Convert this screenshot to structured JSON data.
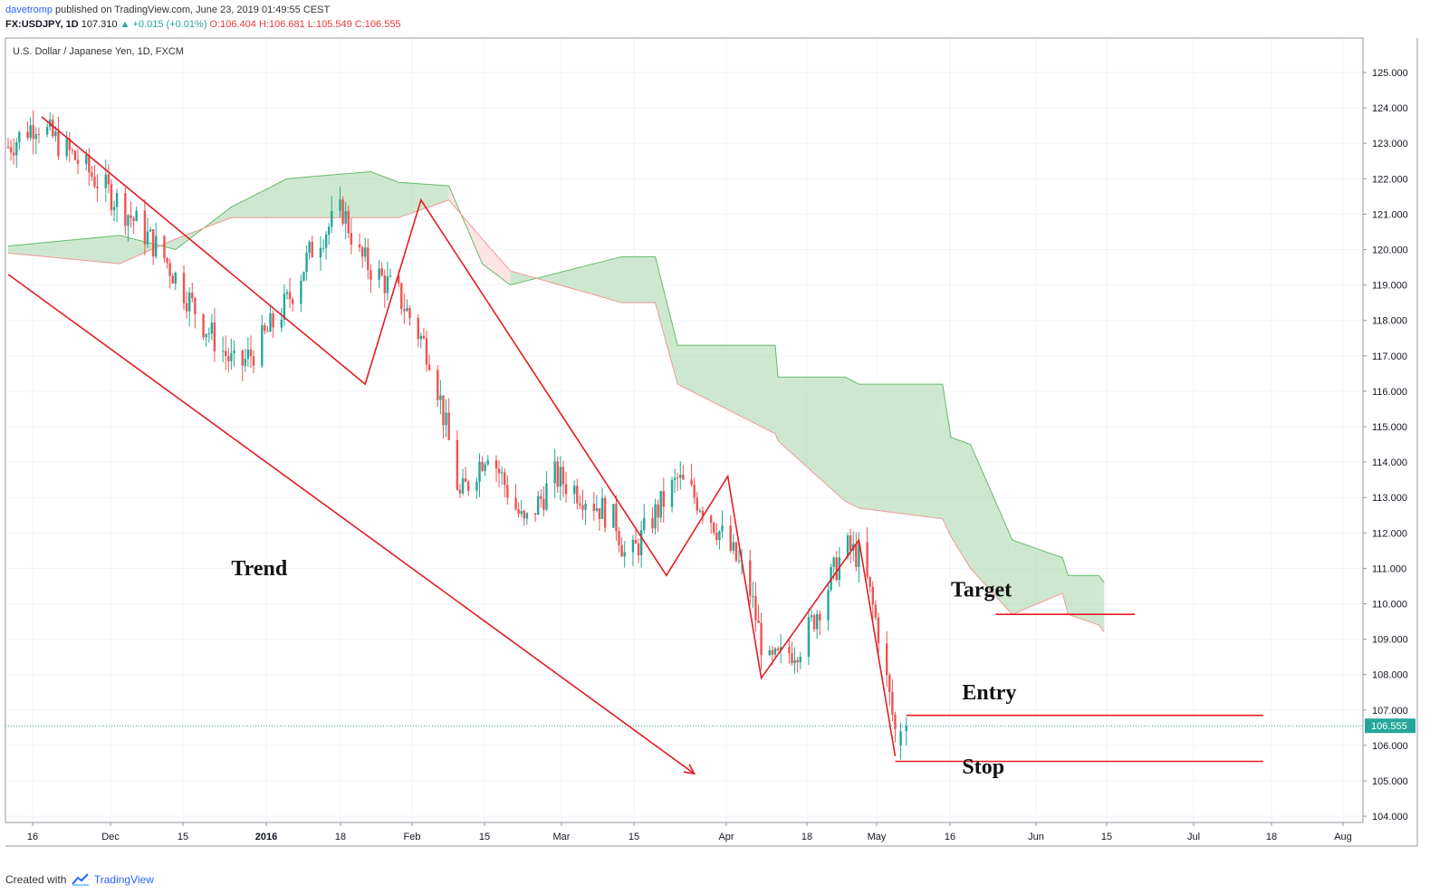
{
  "header": {
    "author": "davetromp",
    "published_text": "published on TradingView.com, June 23, 2019 01:49:55 CEST",
    "symbol_line": "FX:USDJPY, 1D",
    "last_price": "107.310",
    "change_text": "▲ +0.015 (+0.01%)",
    "ohlc_text": "O:106.404 H:106.681 L:105.549 C:106.555"
  },
  "footer": {
    "created_with": "Created with",
    "brand": "TradingView"
  },
  "colors": {
    "up": "#26a69a",
    "down": "#ef5350",
    "cloud_bull": "#a5d6a7",
    "cloud_bear": "#ffcdd2",
    "annotation": "#e51c23",
    "price_line": "#26a69a",
    "grid": "#f0f3fa"
  },
  "chart_data": {
    "type": "candlestick",
    "title": "U.S. Dollar / Japanese Yen, 1D, FXCM",
    "ylim": [
      103.6,
      125.8
    ],
    "y_ticks": [
      "125.000",
      "124.000",
      "123.000",
      "122.000",
      "121.000",
      "120.000",
      "119.000",
      "118.000",
      "117.000",
      "116.000",
      "115.000",
      "114.000",
      "113.000",
      "112.000",
      "111.000",
      "110.000",
      "109.000",
      "108.000",
      "107.000",
      "106.000",
      "105.000",
      "104.000"
    ],
    "x_tick_labels": [
      "16",
      "Dec",
      "15",
      "2016",
      "18",
      "Feb",
      "15",
      "Mar",
      "15",
      "Apr",
      "18",
      "May",
      "16",
      "Jun",
      "15",
      "Jul",
      "18",
      "Aug"
    ],
    "x_tick_bold": [
      "2016"
    ],
    "current_price_label": "106.555",
    "candle_trend": [
      [
        0,
        122.9
      ],
      [
        10,
        123.6
      ],
      [
        25,
        122.5
      ],
      [
        40,
        121.3
      ],
      [
        55,
        119.9
      ],
      [
        70,
        117.9
      ],
      [
        82,
        116.6
      ],
      [
        90,
        117.3
      ],
      [
        100,
        118.5
      ],
      [
        110,
        120.2
      ],
      [
        120,
        121.1
      ],
      [
        126,
        119.8
      ],
      [
        140,
        118.7
      ],
      [
        152,
        116.9
      ],
      [
        162,
        113.0
      ],
      [
        172,
        114.4
      ],
      [
        185,
        112.2
      ],
      [
        196,
        113.6
      ],
      [
        208,
        113.0
      ],
      [
        218,
        112.3
      ],
      [
        222,
        111.1
      ],
      [
        230,
        112.3
      ],
      [
        240,
        113.5
      ],
      [
        250,
        112.7
      ],
      [
        265,
        110.7
      ],
      [
        272,
        108.2
      ],
      [
        285,
        108.9
      ],
      [
        300,
        111.6
      ],
      [
        306,
        111.3
      ],
      [
        312,
        109.2
      ],
      [
        318,
        106.4
      ]
    ],
    "candles_after_gap": [
      [
        320,
        106.4
      ],
      [
        322,
        106.55
      ]
    ],
    "ichimoku_cloud": {
      "span_a": [
        [
          0,
          120.1
        ],
        [
          40,
          120.4
        ],
        [
          60,
          120.0
        ],
        [
          80,
          121.2
        ],
        [
          100,
          122.0
        ],
        [
          130,
          122.2
        ],
        [
          140,
          121.9
        ],
        [
          158,
          121.8
        ],
        [
          170,
          119.6
        ],
        [
          180,
          119.0
        ],
        [
          220,
          119.8
        ],
        [
          232,
          119.8
        ],
        [
          240,
          117.3
        ],
        [
          275,
          117.3
        ],
        [
          276,
          116.4
        ],
        [
          300,
          116.4
        ],
        [
          305,
          116.2
        ],
        [
          335,
          116.2
        ],
        [
          338,
          114.7
        ],
        [
          345,
          114.5
        ],
        [
          360,
          111.8
        ],
        [
          378,
          111.3
        ],
        [
          380,
          110.8
        ],
        [
          391,
          110.8
        ],
        [
          393,
          110.6
        ]
      ],
      "span_b": [
        [
          0,
          119.9
        ],
        [
          40,
          119.6
        ],
        [
          60,
          120.3
        ],
        [
          80,
          120.9
        ],
        [
          100,
          120.9
        ],
        [
          130,
          120.9
        ],
        [
          140,
          120.9
        ],
        [
          158,
          121.4
        ],
        [
          170,
          120.3
        ],
        [
          180,
          119.4
        ],
        [
          220,
          118.5
        ],
        [
          232,
          118.5
        ],
        [
          240,
          116.2
        ],
        [
          275,
          114.8
        ],
        [
          276,
          114.6
        ],
        [
          300,
          112.9
        ],
        [
          305,
          112.7
        ],
        [
          335,
          112.4
        ],
        [
          338,
          111.9
        ],
        [
          345,
          111.0
        ],
        [
          360,
          109.7
        ],
        [
          378,
          110.3
        ],
        [
          380,
          109.7
        ],
        [
          391,
          109.4
        ],
        [
          393,
          109.2
        ]
      ]
    },
    "annotations": {
      "labels": [
        {
          "text": "Trend",
          "price": 110.8,
          "bar": 80
        },
        {
          "text": "Target",
          "price": 110.2,
          "bar": 338
        },
        {
          "text": "Entry",
          "price": 107.3,
          "bar": 342
        },
        {
          "text": "Stop",
          "price": 105.2,
          "bar": 342
        }
      ],
      "zigzag": [
        [
          12,
          123.75
        ],
        [
          128,
          116.2
        ],
        [
          148,
          121.4
        ],
        [
          236,
          110.8
        ],
        [
          258,
          113.6
        ],
        [
          270,
          107.9
        ],
        [
          305,
          111.8
        ],
        [
          318,
          105.7
        ]
      ],
      "trend_arrow": {
        "from": [
          0,
          119.3
        ],
        "to": [
          246,
          105.2
        ]
      },
      "levels": [
        {
          "name": "target",
          "price": 109.7,
          "from_bar": 354,
          "to_bar": 404
        },
        {
          "name": "entry",
          "price": 106.85,
          "from_bar": 322,
          "to_bar": 450
        },
        {
          "name": "stop",
          "price": 105.55,
          "from_bar": 318,
          "to_bar": 450
        }
      ]
    }
  }
}
